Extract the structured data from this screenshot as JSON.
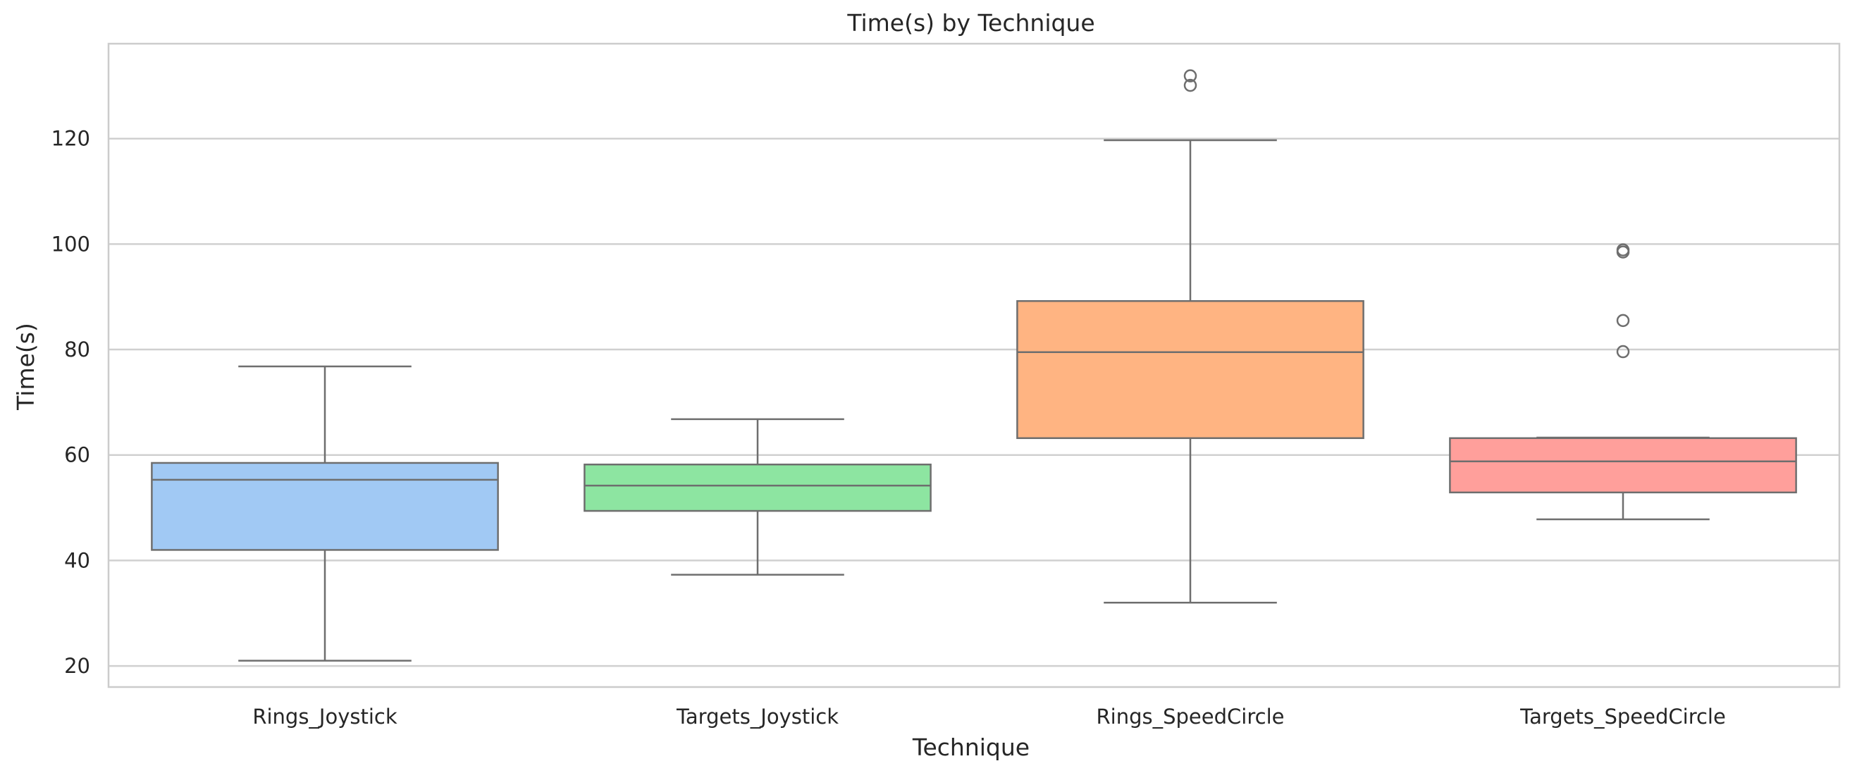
{
  "chart_data": {
    "type": "box",
    "title": "Time(s) by Technique",
    "xlabel": "Technique",
    "ylabel": "Time(s)",
    "ylim": [
      16,
      138
    ],
    "yticks": [
      20,
      40,
      60,
      80,
      100,
      120
    ],
    "grid": "horizontal",
    "categories": [
      "Rings_Joystick",
      "Targets_Joystick",
      "Rings_SpeedCircle",
      "Targets_SpeedCircle"
    ],
    "boxes": [
      {
        "category": "Rings_Joystick",
        "color": "#a1c9f4",
        "whisker_low": 21,
        "q1": 42,
        "median": 55.3,
        "q3": 58.5,
        "whisker_high": 76.8,
        "outliers": []
      },
      {
        "category": "Targets_Joystick",
        "color": "#8de5a1",
        "whisker_low": 37.3,
        "q1": 49.4,
        "median": 54.2,
        "q3": 58.2,
        "whisker_high": 66.8,
        "outliers": []
      },
      {
        "category": "Rings_SpeedCircle",
        "color": "#ffb482",
        "whisker_low": 32,
        "q1": 63.2,
        "median": 79.5,
        "q3": 89.2,
        "whisker_high": 119.7,
        "outliers": [
          130.1,
          131.9
        ]
      },
      {
        "category": "Targets_SpeedCircle",
        "color": "#ff9f9b",
        "whisker_low": 47.8,
        "q1": 52.9,
        "median": 58.8,
        "q3": 63.2,
        "whisker_high": 63.3,
        "outliers": [
          79.6,
          85.5,
          98.5,
          98.9
        ]
      }
    ]
  }
}
